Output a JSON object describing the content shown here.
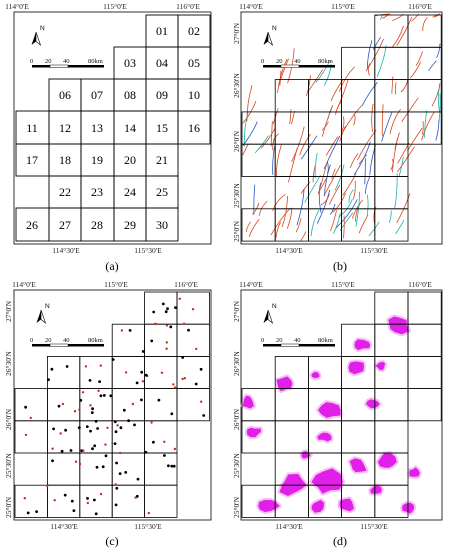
{
  "figure": {
    "panel_labels": [
      "(a)",
      "(b)",
      "(c)",
      "(d)"
    ],
    "lon_ticks": [
      "114°0'E",
      "114°30'E",
      "115°0'E",
      "115°30'E",
      "116°0'E"
    ],
    "lat_ticks": [
      "27°0'N",
      "26°30'N",
      "26°0'N",
      "25°30'N",
      "25°0'N"
    ],
    "north_arrow_label": "N",
    "scale_bar_labels": [
      "0",
      "20",
      "40",
      "80km"
    ],
    "grid_cells": [
      "01",
      "02",
      "03",
      "04",
      "05",
      "06",
      "07",
      "08",
      "09",
      "10",
      "11",
      "12",
      "13",
      "14",
      "15",
      "16",
      "17",
      "18",
      "19",
      "20",
      "21",
      "22",
      "23",
      "24",
      "25",
      "26",
      "27",
      "28",
      "29",
      "30"
    ],
    "colors": {
      "grid": "#000000",
      "fault_red": "#d8461f",
      "fault_blue": "#2b55c4",
      "fault_cyan": "#19b3a8",
      "point_black": "#000000",
      "point_red": "#c0321c",
      "prospect_magenta": "#e020e8",
      "prospect_halo": "#f6c2f3"
    }
  }
}
